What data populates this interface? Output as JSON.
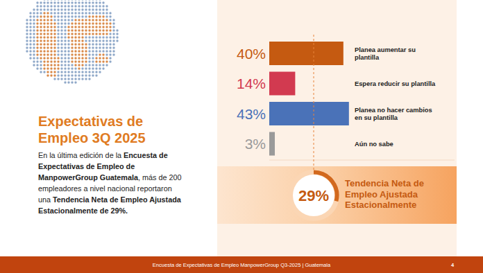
{
  "slide": {
    "heading": "Expectativas de\nEmpleo 3Q 2025",
    "description": [
      {
        "text": "En la última edición de la ",
        "bold": false
      },
      {
        "text": "Encuesta de Expectativas de Empleo de ManpowerGroup Guatemala",
        "bold": true
      },
      {
        "text": ", más de 200 empleadores a nivel nacional reportaron una ",
        "bold": false
      },
      {
        "text": "Tendencia Neta de Empleo Ajustada Estacionalmente de 29%.",
        "bold": true
      }
    ],
    "footer": "Encuesta de Expectativas de Empleo ManpowerGroup Q3-2025 | Guatemala",
    "page_number": 4
  },
  "chart_data": {
    "type": "bar",
    "orientation": "horizontal",
    "categories": [
      "Planea aumentar su\nplantilla",
      "Espera reducir su plantilla",
      "Planea no hacer cambios\nen su plantilla",
      "Aún no sabe"
    ],
    "values": [
      40,
      14,
      43,
      3
    ],
    "value_labels": [
      "40%",
      "14%",
      "43%",
      "3%"
    ],
    "colors": [
      "#c55a11",
      "#d23a50",
      "#4a72b8",
      "#9a9a9a"
    ],
    "data_labels": true,
    "tick_labels": false,
    "grid": false,
    "xlim": [
      0,
      100
    ],
    "annotations": [
      {
        "value": 29,
        "label": "29%",
        "text": "Tendencia Neta de\nEmpleo Ajustada\nEstacionalmente"
      }
    ]
  }
}
